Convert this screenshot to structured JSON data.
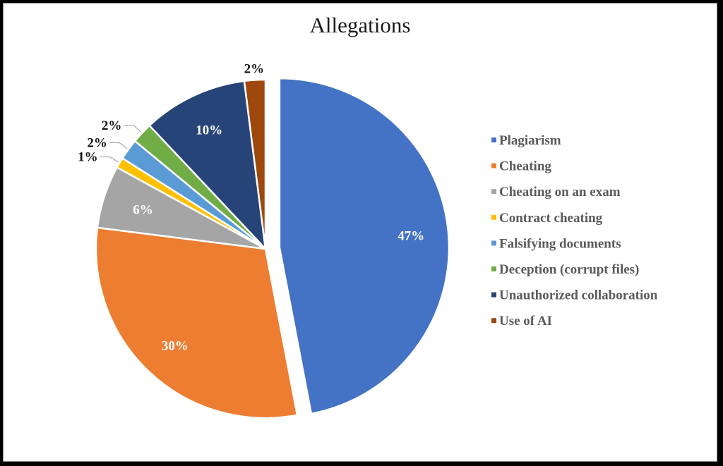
{
  "chart_data": {
    "type": "pie",
    "title": "Allegations",
    "legend_position": "right",
    "slices": [
      {
        "name": "Plagiarism",
        "value": 47,
        "label": "47%",
        "color": "#4472C4"
      },
      {
        "name": "Cheating",
        "value": 30,
        "label": "30%",
        "color": "#ED7D31"
      },
      {
        "name": "Cheating on an exam",
        "value": 6,
        "label": "6%",
        "color": "#A5A5A5"
      },
      {
        "name": "Contract cheating",
        "value": 1,
        "label": "1%",
        "color": "#FFC000"
      },
      {
        "name": "Falsifying documents",
        "value": 2,
        "label": "2%",
        "color": "#5B9BD5"
      },
      {
        "name": "Deception (corrupt files)",
        "value": 2,
        "label": "2%",
        "color": "#70AD47"
      },
      {
        "name": "Unauthorized collaboration",
        "value": 10,
        "label": "10%",
        "color": "#264478"
      },
      {
        "name": "Use of AI",
        "value": 2,
        "label": "2%",
        "color": "#9E480E"
      }
    ]
  }
}
